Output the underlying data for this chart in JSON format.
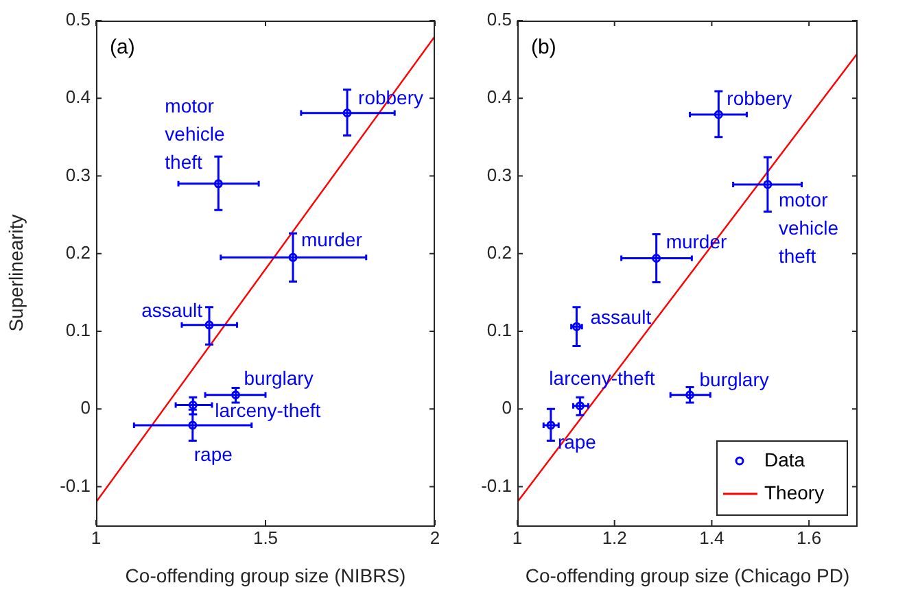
{
  "chart_data": [
    {
      "type": "scatter",
      "xlabel": "Co-offending group size (NIBRS)",
      "ylabel": "Superlinearity",
      "xlim": [
        1,
        2
      ],
      "ylim": [
        -0.15,
        0.5
      ],
      "xticks": [
        1,
        1.5,
        2
      ],
      "yticks": [
        -0.1,
        0,
        0.1,
        0.2,
        0.3,
        0.4,
        0.5
      ],
      "grid": false,
      "legend": false,
      "annotations": [
        "(a)",
        {
          "text": "robbery",
          "x": 1.741,
          "y": 0.381
        },
        {
          "text": "motor vehicle theft",
          "x": 1.361,
          "y": 0.29
        },
        {
          "text": "murder",
          "x": 1.581,
          "y": 0.195
        },
        {
          "text": "assault",
          "x": 1.334,
          "y": 0.108
        },
        {
          "text": "burglary",
          "x": 1.412,
          "y": 0.018
        },
        {
          "text": "larceny-theft",
          "x": 1.286,
          "y": 0.005
        },
        {
          "text": "rape",
          "x": 1.285,
          "y": -0.021
        }
      ],
      "series": [
        {
          "marker": "circle",
          "color": "#0000ff",
          "x": [
            1.741,
            1.361,
            1.581,
            1.334,
            1.412,
            1.286,
            1.285
          ],
          "values": [
            0.381,
            0.29,
            0.195,
            0.108,
            0.018,
            0.005,
            -0.021
          ],
          "errors": [
            [
              0.352,
              0.411
            ],
            [
              0.256,
              0.325
            ],
            [
              0.164,
              0.226
            ],
            [
              0.083,
              0.131
            ],
            [
              0.008,
              0.027
            ],
            [
              -0.007,
              0.015
            ],
            [
              -0.041,
              -0.001
            ]
          ],
          "xerrors": [
            [
              1.605,
              1.881
            ],
            [
              1.243,
              1.48
            ],
            [
              1.368,
              1.797
            ],
            [
              1.253,
              1.416
            ],
            [
              1.322,
              1.5
            ],
            [
              1.235,
              1.342
            ],
            [
              1.112,
              1.459
            ]
          ]
        },
        {
          "type": "line",
          "color": "#ff0000",
          "x": [
            1,
            2
          ],
          "values": [
            -0.12,
            0.48
          ]
        }
      ]
    },
    {
      "type": "scatter",
      "xlabel": "Co-offending group size (Chicago PD)",
      "xlim": [
        1,
        1.7
      ],
      "ylim": [
        -0.15,
        0.5
      ],
      "xticks": [
        1,
        1.2,
        1.4,
        1.6
      ],
      "yticks": [
        -0.1,
        0,
        0.1,
        0.2,
        0.3,
        0.4,
        0.5
      ],
      "grid": false,
      "legend": "bottom right",
      "annotations": [
        "(b)",
        {
          "text": "robbery",
          "x": 1.414,
          "y": 0.379
        },
        {
          "text": "motor vehicle theft",
          "x": 1.515,
          "y": 0.289
        },
        {
          "text": "murder",
          "x": 1.286,
          "y": 0.194
        },
        {
          "text": "assault",
          "x": 1.122,
          "y": 0.106
        },
        {
          "text": "burglary",
          "x": 1.355,
          "y": 0.018
        },
        {
          "text": "larceny-theft",
          "x": 1.129,
          "y": 0.004
        },
        {
          "text": "rape",
          "x": 1.069,
          "y": -0.021
        }
      ],
      "series": [
        {
          "marker": "circle",
          "name": "Data",
          "color": "#0000ff",
          "x": [
            1.414,
            1.515,
            1.286,
            1.122,
            1.355,
            1.129,
            1.069
          ],
          "values": [
            0.379,
            0.289,
            0.194,
            0.106,
            0.018,
            0.004,
            -0.021
          ],
          "errors": [
            [
              0.35,
              0.409
            ],
            [
              0.254,
              0.324
            ],
            [
              0.163,
              0.225
            ],
            [
              0.081,
              0.131
            ],
            [
              0.008,
              0.028
            ],
            [
              -0.008,
              0.015
            ],
            [
              -0.041,
              0
            ]
          ],
          "xerrors": [
            [
              1.355,
              1.472
            ],
            [
              1.444,
              1.585
            ],
            [
              1.214,
              1.359
            ],
            [
              1.111,
              1.133
            ],
            [
              1.315,
              1.397
            ],
            [
              1.115,
              1.146
            ],
            [
              1.054,
              1.085
            ]
          ]
        },
        {
          "type": "line",
          "name": "Theory",
          "color": "#ff0000",
          "x": [
            1,
            1.7
          ],
          "values": [
            -0.12,
            0.458
          ]
        }
      ]
    }
  ]
}
